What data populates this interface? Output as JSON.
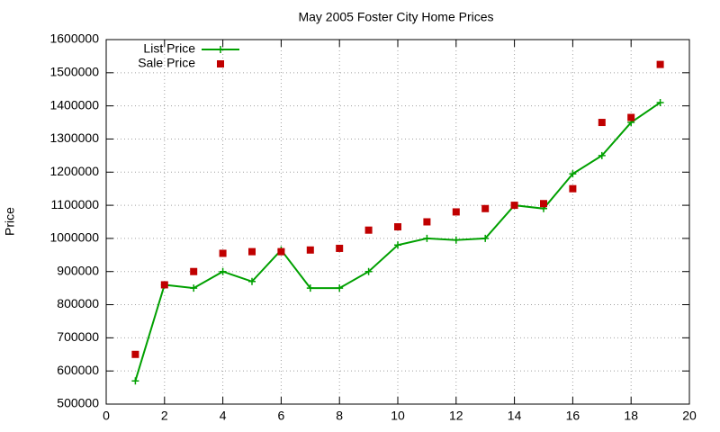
{
  "chart_data": {
    "type": "line",
    "title": "May 2005 Foster City Home Prices",
    "y_label": "Price",
    "x": [
      1,
      2,
      3,
      4,
      5,
      6,
      7,
      8,
      9,
      10,
      11,
      12,
      13,
      14,
      15,
      16,
      17,
      18,
      19
    ],
    "series": [
      {
        "name": "List Price",
        "color": "#00a000",
        "mode": "linespoints",
        "values": [
          570000,
          860000,
          850000,
          900000,
          870000,
          965000,
          850000,
          850000,
          900000,
          980000,
          1000000,
          995000,
          1000000,
          1100000,
          1090000,
          1195000,
          1250000,
          1350000,
          1410000
        ]
      },
      {
        "name": "Sale Price",
        "color": "#c00000",
        "mode": "points",
        "values": [
          650000,
          860000,
          900000,
          955000,
          960000,
          960000,
          965000,
          970000,
          1025000,
          1035000,
          1050000,
          1080000,
          1090000,
          1100000,
          1105000,
          1150000,
          1350000,
          1365000,
          1525000
        ]
      }
    ],
    "xlim": [
      0,
      20
    ],
    "xticks": [
      0,
      2,
      4,
      6,
      8,
      10,
      12,
      14,
      16,
      18,
      20
    ],
    "ylim": [
      500000,
      1600000
    ],
    "yticks": [
      500000,
      600000,
      700000,
      800000,
      900000,
      1000000,
      1100000,
      1200000,
      1300000,
      1400000,
      1500000,
      1600000
    ],
    "grid": true,
    "legend": "top-left"
  }
}
